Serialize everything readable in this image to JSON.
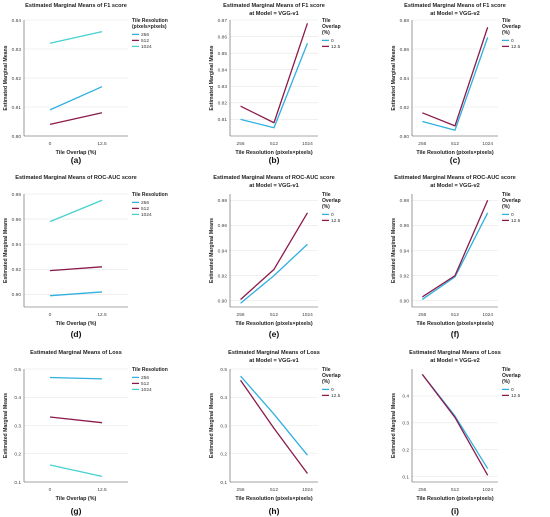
{
  "colors": {
    "c256": "#2fb0e0",
    "c512": "#8b1a4a",
    "c1024": "#45d2d0",
    "c0": "#2fb0e0",
    "c125": "#8b1a4a",
    "grid": "#e6e6e6",
    "axis": "#555555"
  },
  "chart_data": [
    {
      "type": "line",
      "panel_label": "(a)",
      "title": "Estimated Marginal Means of F1 score",
      "subtitle": "",
      "xlabel": "Tile Overlap (%)",
      "ylabel": "Estimated Marginal Means",
      "categories": [
        "0",
        "12.5"
      ],
      "ylim": [
        0.8,
        0.84
      ],
      "yticks": [
        "0.80",
        "0.81",
        "0.82",
        "0.83",
        "0.84"
      ],
      "legend_title": "Tile Resolution (pixels×pixels)",
      "series": [
        {
          "name": "256",
          "values": [
            0.809,
            0.817
          ]
        },
        {
          "name": "512",
          "values": [
            0.804,
            0.808
          ]
        },
        {
          "name": "1024",
          "values": [
            0.832,
            0.836
          ]
        }
      ]
    },
    {
      "type": "line",
      "panel_label": "(b)",
      "title": "Estimated Marginal Means of F1 score",
      "subtitle": "at Model = VGG-v1",
      "xlabel": "Tile Resolution (pixels×pixels)",
      "ylabel": "Estimated Marginal Means",
      "categories": [
        "256",
        "512",
        "1024"
      ],
      "ylim": [
        0.8,
        0.87
      ],
      "yticks": [
        "0.81",
        "0.82",
        "0.83",
        "0.84",
        "0.85",
        "0.86",
        "0.87"
      ],
      "legend_title": "Tile Overlap (%)",
      "series": [
        {
          "name": "0",
          "values": [
            0.81,
            0.805,
            0.856
          ]
        },
        {
          "name": "12.5",
          "values": [
            0.818,
            0.808,
            0.868
          ]
        }
      ]
    },
    {
      "type": "line",
      "panel_label": "(c)",
      "title": "Estimated Marginal Means of F1 score",
      "subtitle": "at Model = VGG-v2",
      "xlabel": "Tile Resolution (pixels×pixels)",
      "ylabel": "Estimated Marginal Means",
      "categories": [
        "256",
        "512",
        "1024"
      ],
      "ylim": [
        0.8,
        0.88
      ],
      "yticks": [
        "0.80",
        "0.82",
        "0.84",
        "0.86",
        "0.88"
      ],
      "legend_title": "Tile Overlap (%)",
      "series": [
        {
          "name": "0",
          "values": [
            0.81,
            0.804,
            0.868
          ]
        },
        {
          "name": "12.5",
          "values": [
            0.816,
            0.807,
            0.875
          ]
        }
      ]
    },
    {
      "type": "line",
      "panel_label": "(d)",
      "title": "Estimated Marginal Means of ROC-AUC score",
      "subtitle": "",
      "xlabel": "Tile Overlap (%)",
      "ylabel": "Estimated Marginal Means",
      "categories": [
        "0",
        "12.5"
      ],
      "ylim": [
        0.89,
        0.98
      ],
      "yticks": [
        "0.90",
        "0.92",
        "0.94",
        "0.96",
        "0.98"
      ],
      "legend_title": "Tile Resolution",
      "series": [
        {
          "name": "256",
          "values": [
            0.899,
            0.902
          ]
        },
        {
          "name": "512",
          "values": [
            0.919,
            0.922
          ]
        },
        {
          "name": "1024",
          "values": [
            0.958,
            0.975
          ]
        }
      ]
    },
    {
      "type": "line",
      "panel_label": "(e)",
      "title": "Estimated Marginal Means of ROC-AUC score",
      "subtitle": "at Model = VGG-v1",
      "xlabel": "Tile Resolution (pixels×pixels)",
      "ylabel": "Estimated Marginal Means",
      "categories": [
        "256",
        "512",
        "1024"
      ],
      "ylim": [
        0.895,
        0.985
      ],
      "yticks": [
        "0.90",
        "0.92",
        "0.94",
        "0.96",
        "0.98"
      ],
      "legend_title": "Tile Overlap (%)",
      "series": [
        {
          "name": "0",
          "values": [
            0.898,
            0.92,
            0.945
          ]
        },
        {
          "name": "12.5",
          "values": [
            0.901,
            0.925,
            0.97
          ]
        }
      ]
    },
    {
      "type": "line",
      "panel_label": "(f)",
      "title": "Estimated Marginal Means of ROC-AUC score",
      "subtitle": "at Model = VGG-v2",
      "xlabel": "Tile Resolution (pixels×pixels)",
      "ylabel": "Estimated Marginal Means",
      "categories": [
        "256",
        "512",
        "1024"
      ],
      "ylim": [
        0.895,
        0.985
      ],
      "yticks": [
        "0.90",
        "0.92",
        "0.94",
        "0.96",
        "0.98"
      ],
      "legend_title": "Tile Overlap (%)",
      "series": [
        {
          "name": "0",
          "values": [
            0.901,
            0.919,
            0.97
          ]
        },
        {
          "name": "12.5",
          "values": [
            0.903,
            0.92,
            0.98
          ]
        }
      ]
    },
    {
      "type": "line",
      "panel_label": "(g)",
      "title": "Estimated Marginal Means of Loss",
      "subtitle": "",
      "xlabel": "Tile Overlap (%)",
      "ylabel": "Estimated Marginal Means",
      "categories": [
        "0",
        "12.5"
      ],
      "ylim": [
        0.1,
        0.5
      ],
      "yticks": [
        "0.1",
        "0.2",
        "0.3",
        "0.4",
        "0.5"
      ],
      "legend_title": "Tile Resolution",
      "series": [
        {
          "name": "256",
          "values": [
            0.47,
            0.465
          ]
        },
        {
          "name": "512",
          "values": [
            0.33,
            0.31
          ]
        },
        {
          "name": "1024",
          "values": [
            0.16,
            0.12
          ]
        }
      ]
    },
    {
      "type": "line",
      "panel_label": "(h)",
      "title": "Estimated Marginal Means of Loss",
      "subtitle": "at Model = VGG-v1",
      "xlabel": "Tile Resolution (pixels×pixels)",
      "ylabel": "Estimated Marginal Means",
      "categories": [
        "256",
        "512",
        "1024"
      ],
      "ylim": [
        0.1,
        0.5
      ],
      "yticks": [
        "0.1",
        "0.2",
        "0.3",
        "0.4",
        "0.5"
      ],
      "legend_title": "Tile Overlap (%)",
      "series": [
        {
          "name": "0",
          "values": [
            0.475,
            0.34,
            0.195
          ]
        },
        {
          "name": "12.5",
          "values": [
            0.46,
            0.29,
            0.13
          ]
        }
      ]
    },
    {
      "type": "line",
      "panel_label": "(i)",
      "title": "Estimated Marginal Means of Loss",
      "subtitle": "at Model = VGG-v2",
      "xlabel": "Tile Resolution (pixels×pixels)",
      "ylabel": "Estimated Marginal Means",
      "categories": [
        "256",
        "512",
        "1024"
      ],
      "ylim": [
        0.08,
        0.5
      ],
      "yticks": [
        "0.1",
        "0.2",
        "0.3",
        "0.4"
      ],
      "legend_title": "Tile Overlap (%)",
      "series": [
        {
          "name": "0",
          "values": [
            0.48,
            0.325,
            0.13
          ]
        },
        {
          "name": "12.5",
          "values": [
            0.48,
            0.32,
            0.105
          ]
        }
      ]
    }
  ]
}
